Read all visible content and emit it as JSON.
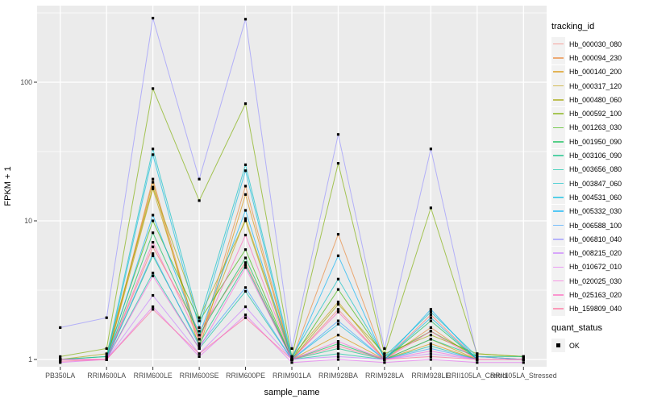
{
  "figure": {
    "y_axis_title": "FPKM + 1",
    "x_axis_title": "sample_name"
  },
  "legend": {
    "tracking_title": "tracking_id",
    "quant_title": "quant_status",
    "quant_items": [
      {
        "label": "OK",
        "symbol": "black-square"
      }
    ]
  },
  "chart_data": {
    "type": "line",
    "title": "",
    "xlabel": "sample_name",
    "ylabel": "FPKM + 1",
    "y_scale": "log10",
    "ylim": [
      0.9,
      330
    ],
    "y_ticks": [
      1,
      10,
      100
    ],
    "y_tick_labels": [
      "1",
      "10",
      "100"
    ],
    "y_minor_ticks": [
      3.162,
      31.62,
      316.2
    ],
    "grid": "major-and-minor-white-on-gray",
    "legend_position": "right",
    "panel_bg": "#EBEBEB",
    "grid_color": "#FFFFFF",
    "legend_key_bg": "#F2F2F2",
    "point_color": "#000000",
    "point_shape": "square",
    "line_opacity": 0.65,
    "x": [
      "PB350LA",
      "RRIM600LA",
      "RRIM600LE",
      "RRIM600SE",
      "RRIM600PE",
      "RRIM901LA",
      "RRIM928BA",
      "RRIM928LA",
      "RRIM928LE",
      "RRII105LA_Control",
      "RRII105LA_Stressed"
    ],
    "series": [
      {
        "name": "Hb_000030_080",
        "color": "#F8766D",
        "values": [
          1.0,
          1.0,
          6.5,
          1.6,
          5.0,
          1.0,
          2.3,
          1.0,
          2.1,
          1.0,
          1.0
        ]
      },
      {
        "name": "Hb_000094_230",
        "color": "#EA8331",
        "values": [
          1.0,
          1.0,
          20,
          1.3,
          17.8,
          1.0,
          8.0,
          1.0,
          1.7,
          1.0,
          1.0
        ]
      },
      {
        "name": "Hb_000140_200",
        "color": "#D89000",
        "values": [
          1.0,
          1.0,
          19,
          1.2,
          15.5,
          1.0,
          1.5,
          1.0,
          1.3,
          1.0,
          1.0
        ]
      },
      {
        "name": "Hb_000317_120",
        "color": "#C09B00",
        "values": [
          1.0,
          1.0,
          17,
          1.4,
          10.4,
          1.05,
          2.6,
          1.0,
          1.4,
          1.0,
          1.0
        ]
      },
      {
        "name": "Hb_000480_060",
        "color": "#A3A500",
        "values": [
          1.0,
          1.1,
          17.5,
          2.0,
          10.0,
          1.0,
          2.5,
          1.1,
          1.5,
          1.1,
          1.05
        ]
      },
      {
        "name": "Hb_000592_100",
        "color": "#7CAE00",
        "values": [
          1.05,
          1.2,
          90,
          14,
          70,
          1.05,
          26,
          1.1,
          12.4,
          1.1,
          1.05
        ]
      },
      {
        "name": "Hb_001263_030",
        "color": "#39B600",
        "values": [
          1.0,
          1.05,
          10,
          1.9,
          6.2,
          1.0,
          3.2,
          1.05,
          1.6,
          1.05,
          1.0
        ]
      },
      {
        "name": "Hb_001950_090",
        "color": "#00BB4E",
        "values": [
          1.0,
          1.0,
          8.2,
          1.5,
          5.4,
          1.0,
          1.3,
          1.0,
          1.9,
          1.0,
          1.0
        ]
      },
      {
        "name": "Hb_003106_090",
        "color": "#00BF7D",
        "values": [
          1.0,
          1.0,
          5.6,
          1.3,
          4.8,
          1.0,
          1.2,
          1.0,
          1.4,
          1.05,
          1.05
        ]
      },
      {
        "name": "Hb_003656_080",
        "color": "#00C1A3",
        "values": [
          1.0,
          1.0,
          4.2,
          1.2,
          3.1,
          1.0,
          1.1,
          1.0,
          1.25,
          1.0,
          1.0
        ]
      },
      {
        "name": "Hb_003847_060",
        "color": "#00BFC4",
        "values": [
          1.0,
          1.05,
          33,
          1.9,
          25.4,
          1.05,
          3.8,
          1.05,
          2.2,
          1.05,
          1.0
        ]
      },
      {
        "name": "Hb_004531_060",
        "color": "#00BAE0",
        "values": [
          1.0,
          1.0,
          30,
          1.7,
          23,
          1.0,
          1.8,
          1.0,
          2.0,
          1.0,
          1.0
        ]
      },
      {
        "name": "Hb_005332_030",
        "color": "#00B0F6",
        "values": [
          1.0,
          1.0,
          11,
          1.5,
          11.9,
          1.0,
          5.6,
          1.0,
          2.3,
          1.0,
          1.0
        ]
      },
      {
        "name": "Hb_006588_100",
        "color": "#35A2FF",
        "values": [
          1.0,
          1.0,
          5.8,
          1.25,
          3.3,
          1.0,
          1.9,
          1.0,
          1.2,
          1.0,
          1.0
        ]
      },
      {
        "name": "Hb_006810_040",
        "color": "#9590FF",
        "values": [
          1.7,
          2.0,
          290,
          20,
          285,
          1.2,
          42,
          1.2,
          33,
          1.05,
          1.0
        ]
      },
      {
        "name": "Hb_008215_020",
        "color": "#C77CFF",
        "values": [
          1.0,
          1.0,
          2.9,
          1.1,
          2.4,
          1.0,
          1.05,
          1.0,
          1.1,
          1.0,
          1.0
        ]
      },
      {
        "name": "Hb_010672_010",
        "color": "#E76BF3",
        "values": [
          0.95,
          1.0,
          2.4,
          1.05,
          2.1,
          0.95,
          1.0,
          0.95,
          1.0,
          0.95,
          0.95
        ]
      },
      {
        "name": "Hb_020025_030",
        "color": "#FA62DB",
        "values": [
          1.0,
          1.0,
          4.0,
          1.2,
          4.6,
          1.0,
          1.35,
          1.0,
          1.15,
          1.0,
          1.0
        ]
      },
      {
        "name": "Hb_025163_020",
        "color": "#FF62BC",
        "values": [
          1.0,
          1.0,
          7.0,
          1.4,
          7.9,
          1.0,
          2.2,
          1.0,
          1.6,
          1.0,
          1.0
        ]
      },
      {
        "name": "Hb_159809_040",
        "color": "#FF6A98",
        "values": [
          0.97,
          1.0,
          2.3,
          1.1,
          2.0,
          1.0,
          1.25,
          1.0,
          1.05,
          1.0,
          1.0
        ]
      }
    ]
  }
}
